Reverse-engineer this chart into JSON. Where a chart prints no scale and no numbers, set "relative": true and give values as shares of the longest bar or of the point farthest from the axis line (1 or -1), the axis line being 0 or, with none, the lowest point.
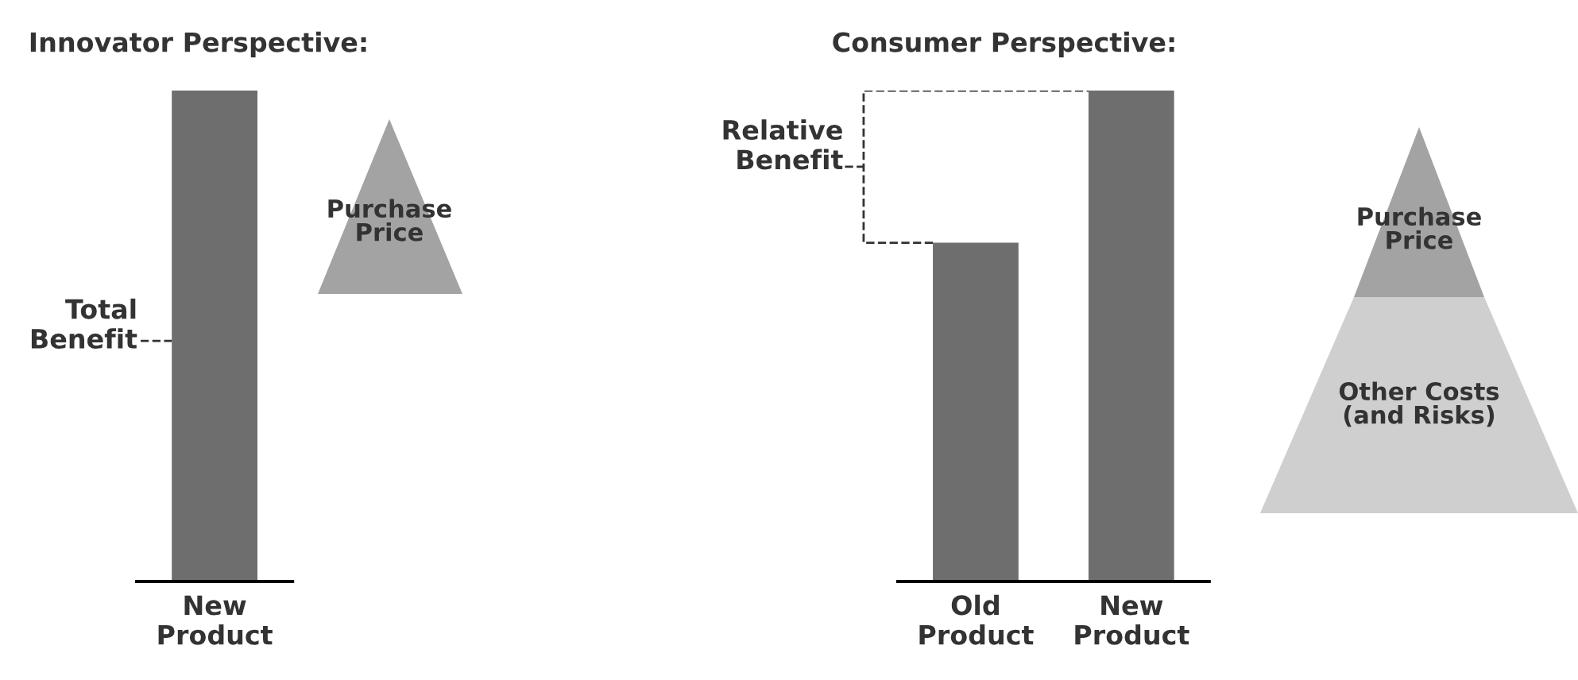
{
  "chart_data": [
    {
      "type": "bar",
      "title": "Innovator Perspective:",
      "categories": [
        "New\nProduct"
      ],
      "values": [
        1
      ],
      "color": "#6e6e6e",
      "relative": true,
      "annotations": [
        "Total\nBenefit",
        "Purchase\nPrice"
      ]
    },
    {
      "type": "bar",
      "title": "Consumer Perspective:",
      "categories": [
        "Old\nProduct",
        "New\nProduct"
      ],
      "values": [
        0.69,
        1
      ],
      "color": "#6e6e6e",
      "relative": true,
      "annotations": [
        "Relative\nBenefit",
        "Purchase\nPrice",
        "Other Costs\n(and Risks)"
      ]
    }
  ]
}
